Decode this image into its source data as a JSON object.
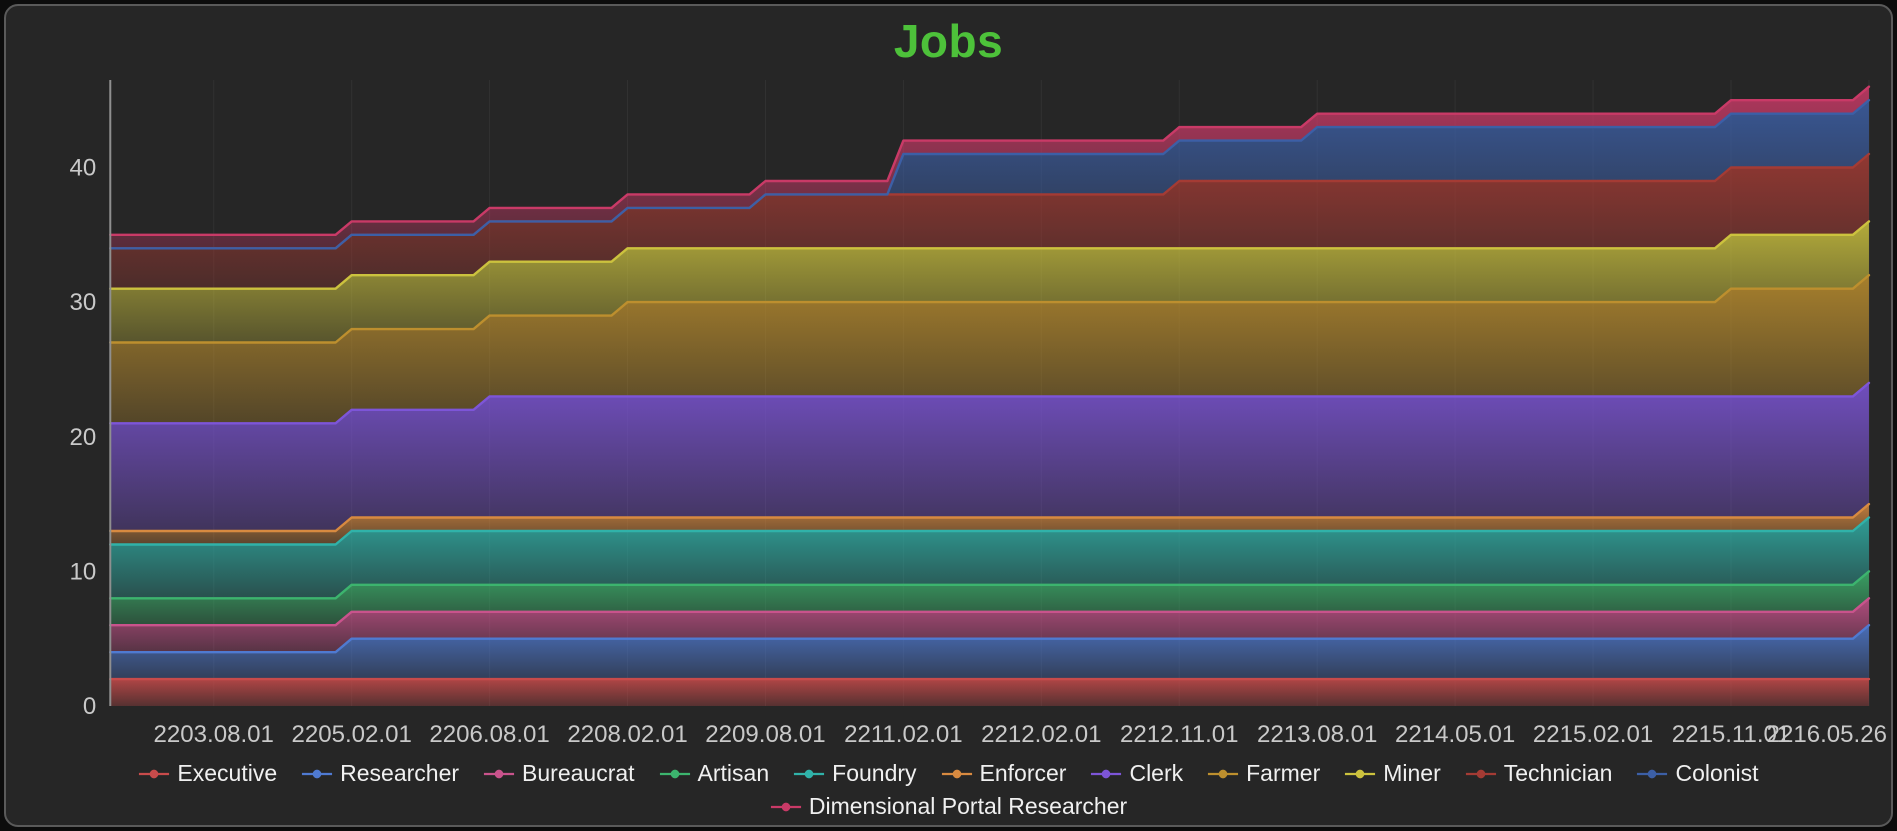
{
  "window": {
    "background": "#0c0c0c",
    "panel_background": "#262626",
    "panel_border": "#5a5a5a"
  },
  "title": {
    "text": "Jobs",
    "color": "#4dc13a"
  },
  "chart_data": {
    "type": "area",
    "stacked": true,
    "title": "Jobs",
    "xlabel": "",
    "ylabel": "",
    "x_ticks": [
      "2203.08.01",
      "2205.02.01",
      "2206.08.01",
      "2208.02.01",
      "2209.08.01",
      "2211.02.01",
      "2212.02.01",
      "2212.11.01",
      "2213.08.01",
      "2214.05.01",
      "2215.02.01",
      "2215.11.01",
      "2216.05.26"
    ],
    "values_note": "first value of each series is the level at the left edge of the plot; the remaining 13 values align with x_ticks",
    "ylim": [
      0,
      46.5
    ],
    "yticks": [
      0,
      10,
      20,
      30,
      40
    ],
    "grid": "faint vertical lines at x ticks",
    "legend_position": "bottom",
    "axis_label_color": "#c9c9c9",
    "series": [
      {
        "name": "Executive",
        "color": "#c84b4b",
        "values": [
          2,
          2,
          2,
          2,
          2,
          2,
          2,
          2,
          2,
          2,
          2,
          2,
          2,
          2
        ]
      },
      {
        "name": "Researcher",
        "color": "#4f7ad1",
        "values": [
          2,
          2,
          3,
          3,
          3,
          3,
          3,
          3,
          3,
          3,
          3,
          3,
          3,
          4
        ]
      },
      {
        "name": "Bureaucrat",
        "color": "#c9538c",
        "values": [
          2,
          2,
          2,
          2,
          2,
          2,
          2,
          2,
          2,
          2,
          2,
          2,
          2,
          2
        ]
      },
      {
        "name": "Artisan",
        "color": "#3cb46e",
        "values": [
          2,
          2,
          2,
          2,
          2,
          2,
          2,
          2,
          2,
          2,
          2,
          2,
          2,
          2
        ]
      },
      {
        "name": "Foundry",
        "color": "#30b2a9",
        "values": [
          4,
          4,
          4,
          4,
          4,
          4,
          4,
          4,
          4,
          4,
          4,
          4,
          4,
          4
        ]
      },
      {
        "name": "Enforcer",
        "color": "#d88a40",
        "values": [
          1,
          1,
          1,
          1,
          1,
          1,
          1,
          1,
          1,
          1,
          1,
          1,
          1,
          1
        ]
      },
      {
        "name": "Clerk",
        "color": "#7d55d8",
        "values": [
          8,
          8,
          8,
          9,
          9,
          9,
          9,
          9,
          9,
          9,
          9,
          9,
          9,
          9
        ]
      },
      {
        "name": "Farmer",
        "color": "#bd8f2e",
        "values": [
          6,
          6,
          6,
          6,
          7,
          7,
          7,
          7,
          7,
          7,
          7,
          7,
          8,
          8
        ]
      },
      {
        "name": "Miner",
        "color": "#ccc23e",
        "values": [
          4,
          4,
          4,
          4,
          4,
          4,
          4,
          4,
          4,
          4,
          4,
          4,
          4,
          4
        ]
      },
      {
        "name": "Technician",
        "color": "#a43b34",
        "values": [
          3,
          3,
          3,
          3,
          3,
          4,
          4,
          4,
          5,
          5,
          5,
          5,
          5,
          5
        ]
      },
      {
        "name": "Colonist",
        "color": "#3c5fa6",
        "values": [
          0,
          0,
          0,
          0,
          0,
          0,
          3,
          3,
          3,
          4,
          4,
          4,
          4,
          4
        ]
      },
      {
        "name": "Dimensional Portal Researcher",
        "color": "#c93a67",
        "values": [
          1,
          1,
          1,
          1,
          1,
          1,
          1,
          1,
          1,
          1,
          1,
          1,
          1,
          1
        ]
      }
    ]
  }
}
